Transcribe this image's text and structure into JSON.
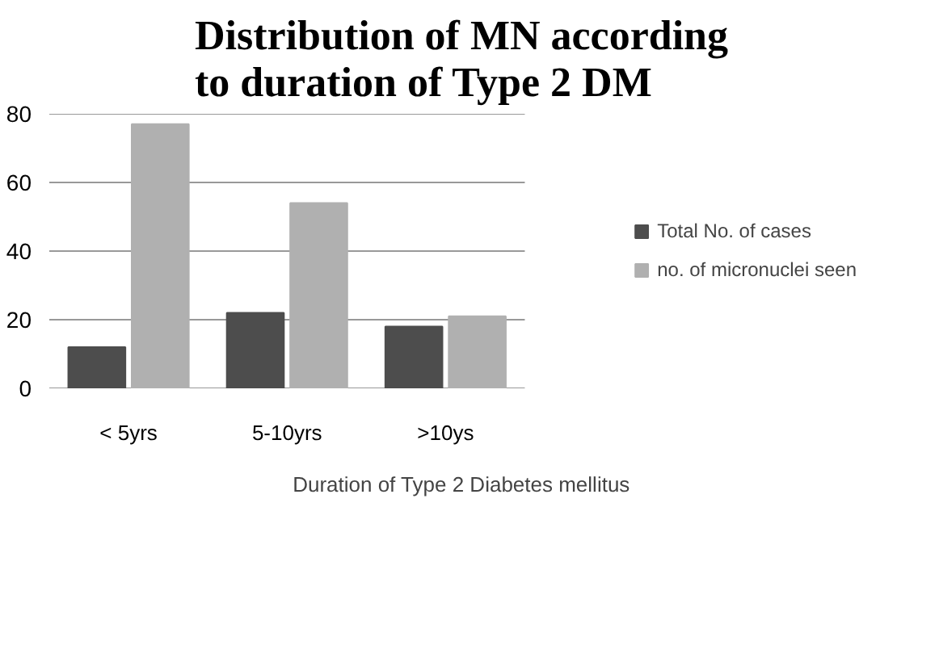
{
  "chart_data": {
    "type": "bar",
    "title": "Distribution of MN according to duration of Type 2 DM",
    "xlabel": "Duration of Type 2 Diabetes mellitus",
    "categories": [
      "< 5yrs",
      "5-10yrs",
      ">10ys"
    ],
    "series": [
      {
        "name": "Total No. of cases",
        "color": "#4d4d4d",
        "values": [
          12,
          22,
          18
        ]
      },
      {
        "name": "no. of micronuclei seen",
        "color": "#b0b0b0",
        "values": [
          77,
          54,
          21
        ]
      }
    ],
    "ylim": [
      0,
      80
    ],
    "yticks": [
      0,
      20,
      40,
      60,
      80
    ],
    "grid": "y",
    "legend": "right"
  }
}
